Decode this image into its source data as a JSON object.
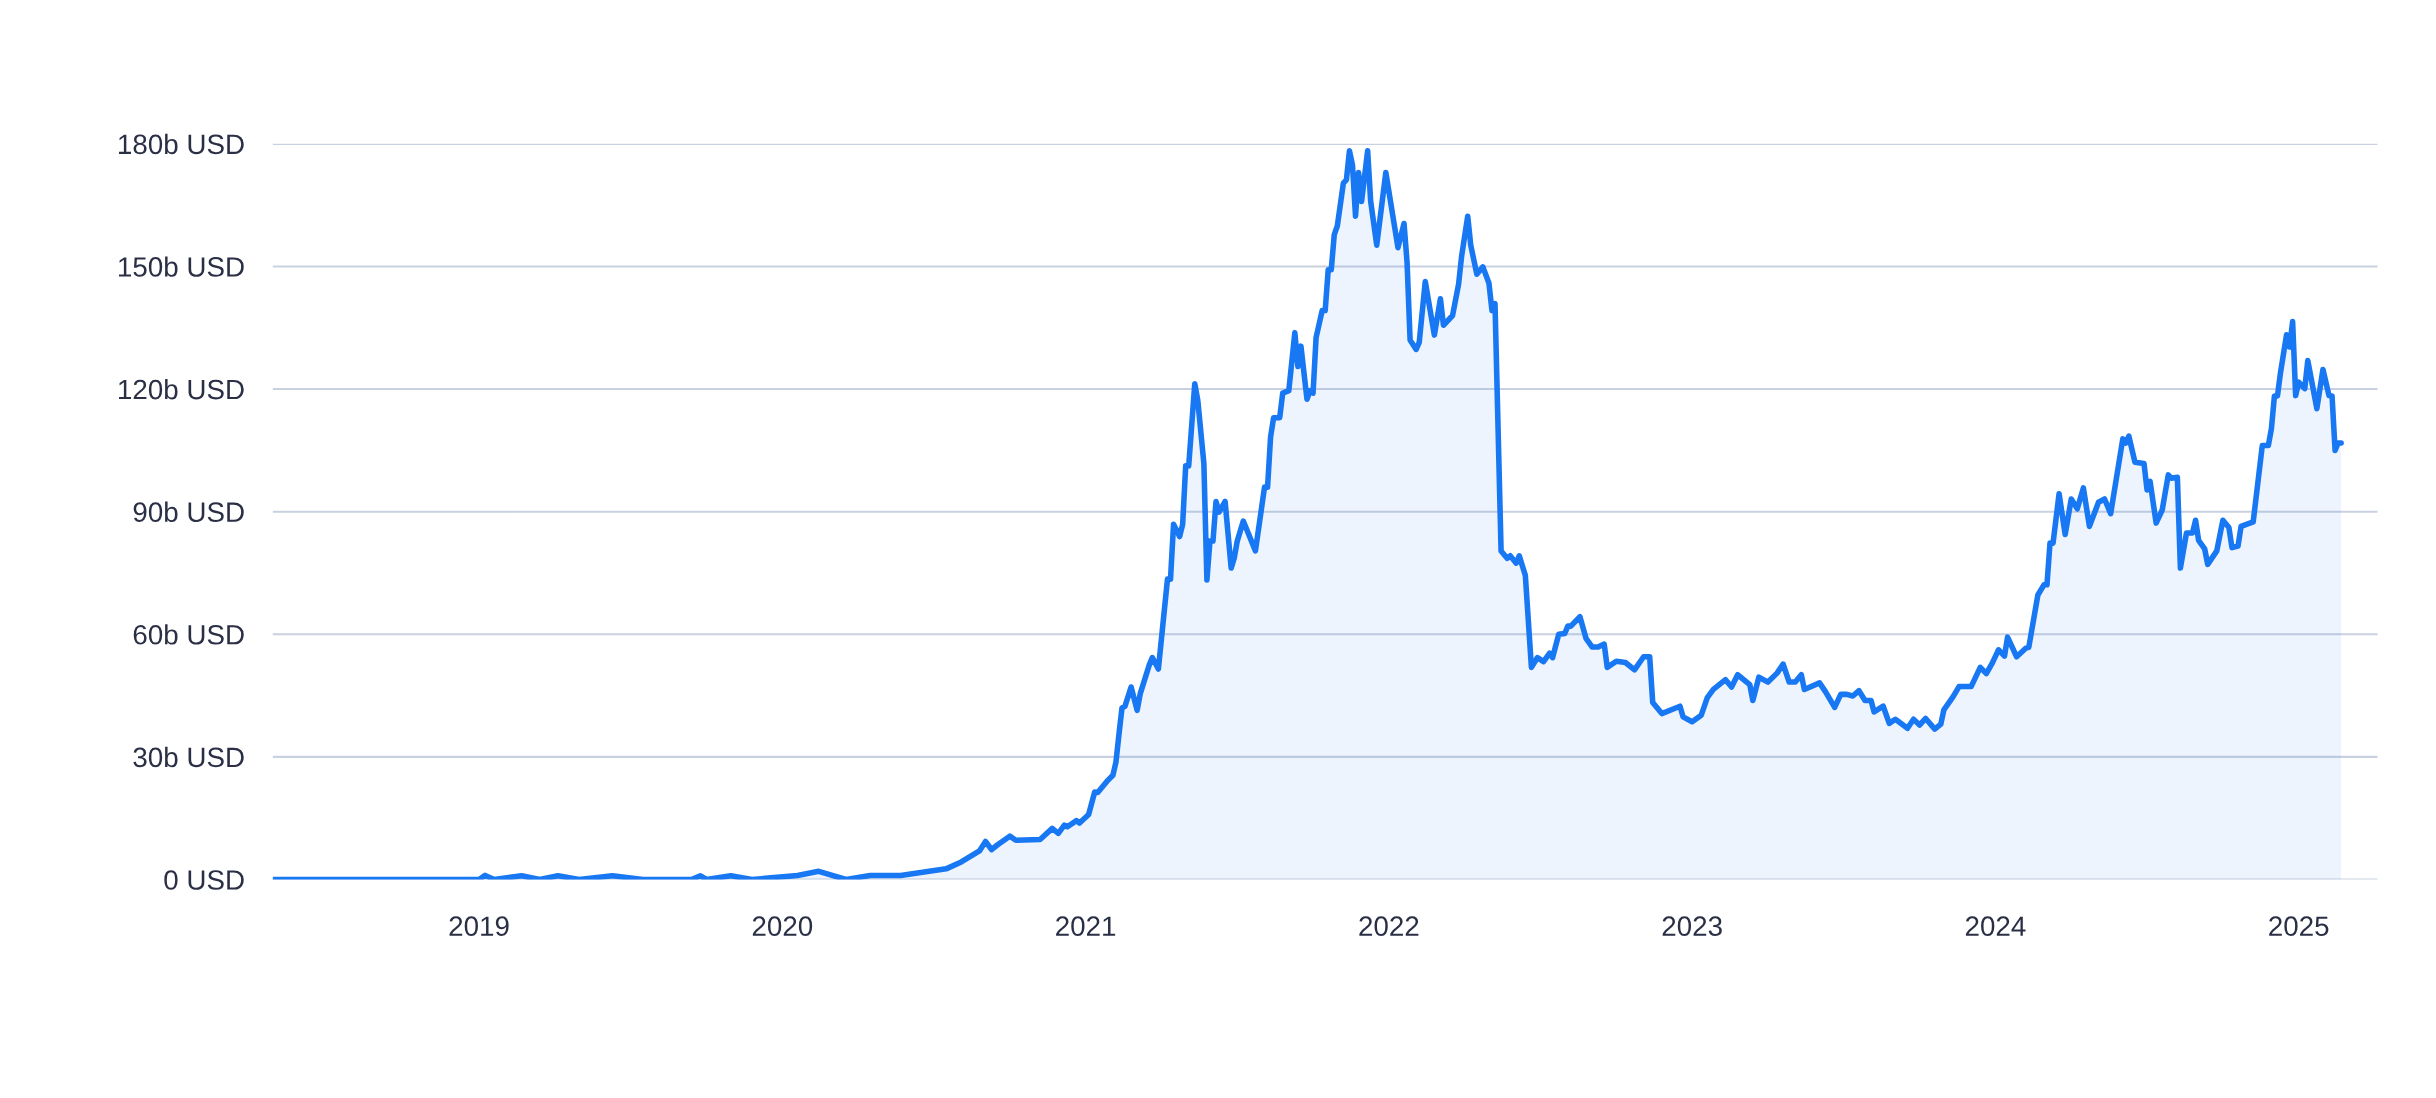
{
  "chart_data": {
    "type": "area",
    "x": [
      2018.32,
      2019.0,
      2019.02,
      2019.05,
      2019.14,
      2019.2,
      2019.26,
      2019.33,
      2019.44,
      2019.54,
      2019.7,
      2019.73,
      2019.75,
      2019.83,
      2019.9,
      2020.05,
      2020.12,
      2020.21,
      2020.29,
      2020.39,
      2020.54,
      2020.59,
      2020.65,
      2020.67,
      2020.69,
      2020.71,
      2020.75,
      2020.77,
      2020.85,
      2020.89,
      2020.91,
      2020.93,
      2020.94,
      2020.97,
      2020.98,
      2021.01,
      2021.03,
      2021.04,
      2021.07,
      2021.09,
      2021.1,
      2021.11,
      2021.12,
      2021.13,
      2021.15,
      2021.17,
      2021.18,
      2021.21,
      2021.22,
      2021.24,
      2021.27,
      2021.28,
      2021.29,
      2021.31,
      2021.32,
      2021.33,
      2021.34,
      2021.36,
      2021.37,
      2021.39,
      2021.4,
      2021.41,
      2021.42,
      2021.43,
      2021.44,
      2021.46,
      2021.48,
      2021.49,
      2021.5,
      2021.52,
      2021.56,
      2021.59,
      2021.6,
      2021.61,
      2021.62,
      2021.64,
      2021.65,
      2021.67,
      2021.69,
      2021.7,
      2021.71,
      2021.73,
      2021.74,
      2021.75,
      2021.76,
      2021.78,
      2021.79,
      2021.8,
      2021.81,
      2021.82,
      2021.83,
      2021.85,
      2021.86,
      2021.87,
      2021.88,
      2021.89,
      2021.9,
      2021.91,
      2021.93,
      2021.94,
      2021.96,
      2021.99,
      2022.03,
      2022.05,
      2022.06,
      2022.07,
      2022.09,
      2022.1,
      2022.12,
      2022.15,
      2022.17,
      2022.18,
      2022.21,
      2022.23,
      2022.24,
      2022.26,
      2022.27,
      2022.29,
      2022.31,
      2022.33,
      2022.34,
      2022.35,
      2022.37,
      2022.39,
      2022.4,
      2022.42,
      2022.43,
      2022.45,
      2022.47,
      2022.49,
      2022.51,
      2022.53,
      2022.54,
      2022.56,
      2022.58,
      2022.59,
      2022.6,
      2022.63,
      2022.65,
      2022.67,
      2022.69,
      2022.71,
      2022.72,
      2022.75,
      2022.78,
      2022.81,
      2022.84,
      2022.86,
      2022.87,
      2022.9,
      2022.96,
      2022.97,
      2023.0,
      2023.03,
      2023.05,
      2023.07,
      2023.11,
      2023.13,
      2023.15,
      2023.19,
      2023.2,
      2023.22,
      2023.25,
      2023.28,
      2023.3,
      2023.32,
      2023.34,
      2023.36,
      2023.37,
      2023.42,
      2023.44,
      2023.47,
      2023.49,
      2023.51,
      2023.53,
      2023.55,
      2023.57,
      2023.59,
      2023.6,
      2023.63,
      2023.65,
      2023.67,
      2023.71,
      2023.73,
      2023.75,
      2023.77,
      2023.8,
      2023.82,
      2023.83,
      2023.86,
      2023.88,
      2023.92,
      2023.95,
      2023.97,
      2023.99,
      2024.01,
      2024.03,
      2024.04,
      2024.07,
      2024.1,
      2024.11,
      2024.14,
      2024.16,
      2024.17,
      2024.18,
      2024.19,
      2024.21,
      2024.23,
      2024.25,
      2024.27,
      2024.29,
      2024.31,
      2024.34,
      2024.36,
      2024.38,
      2024.42,
      2024.43,
      2024.44,
      2024.46,
      2024.49,
      2024.5,
      2024.51,
      2024.53,
      2024.55,
      2024.57,
      2024.58,
      2024.6,
      2024.61,
      2024.63,
      2024.65,
      2024.66,
      2024.67,
      2024.69,
      2024.7,
      2024.73,
      2024.75,
      2024.77,
      2024.78,
      2024.8,
      2024.81,
      2024.85,
      2024.88,
      2024.9,
      2024.91,
      2024.92,
      2024.93,
      2024.94,
      2024.96,
      2024.97,
      2024.98,
      2024.99,
      2025.0,
      2025.02,
      2025.03,
      2025.06,
      2025.08,
      2025.1,
      2025.11,
      2025.12,
      2025.13,
      2025.14
    ],
    "series": [
      {
        "color": "#1877f2",
        "values": [
          0,
          0,
          1.0,
          0,
          0.9,
          0,
          0.9,
          0,
          0.9,
          0,
          0,
          0.9,
          0,
          0.9,
          0,
          1.0,
          2.0,
          0,
          1.0,
          1.0,
          2.6,
          4.3,
          7.0,
          9.3,
          7.3,
          8.5,
          10.6,
          9.6,
          9.8,
          12.5,
          11.3,
          13.3,
          12.9,
          14.4,
          13.8,
          15.9,
          21.4,
          21.3,
          24.0,
          25.5,
          28.7,
          35.5,
          42.0,
          42.4,
          47.1,
          41.4,
          45.4,
          52.5,
          54.3,
          51.5,
          73.5,
          73.5,
          86.9,
          83.9,
          86.9,
          101.2,
          101.2,
          121.3,
          117.2,
          101.8,
          73.3,
          82.8,
          82.8,
          92.5,
          89.9,
          92.5,
          76.2,
          78.6,
          82.8,
          87.7,
          80.4,
          96.0,
          96.0,
          108.3,
          113.0,
          113.0,
          119.0,
          119.6,
          133.8,
          125.5,
          130.5,
          117.5,
          119.6,
          119.0,
          132.6,
          139.2,
          139.2,
          149.2,
          149.2,
          157.8,
          159.9,
          170.4,
          171.2,
          178.3,
          174.8,
          162.3,
          173.0,
          165.9,
          178.3,
          165.9,
          155.2,
          173.0,
          154.6,
          160.5,
          151.0,
          132.0,
          129.7,
          131.4,
          146.3,
          133.2,
          142.1,
          135.6,
          138.0,
          145.7,
          152.6,
          162.3,
          155.2,
          148.1,
          149.9,
          145.9,
          139.2,
          140.9,
          80.4,
          78.6,
          79.2,
          77.4,
          79.2,
          74.4,
          51.9,
          54.3,
          53.3,
          55.4,
          54.3,
          60.0,
          60.2,
          62.0,
          62.0,
          64.3,
          59.0,
          56.9,
          56.9,
          57.6,
          51.9,
          53.4,
          53.1,
          51.3,
          54.5,
          54.5,
          43.3,
          40.6,
          42.4,
          39.8,
          38.6,
          40.2,
          44.5,
          46.5,
          48.9,
          47.1,
          50.1,
          47.7,
          43.8,
          49.5,
          48.3,
          50.5,
          52.7,
          48.3,
          48.3,
          50.1,
          46.5,
          48.1,
          45.9,
          42.1,
          45.3,
          45.3,
          44.9,
          46.2,
          43.8,
          43.8,
          41.0,
          42.4,
          38.2,
          39.2,
          37.0,
          39.2,
          37.8,
          39.4,
          36.8,
          38.0,
          41.5,
          44.7,
          47.2,
          47.2,
          51.9,
          50.4,
          53.0,
          56.2,
          54.7,
          59.3,
          54.5,
          56.6,
          56.8,
          69.6,
          72.1,
          72.1,
          82.3,
          82.3,
          94.4,
          84.4,
          93.1,
          90.7,
          95.8,
          86.4,
          92.3,
          93.1,
          89.5,
          107.8,
          106.8,
          108.5,
          102.1,
          101.8,
          95.3,
          97.4,
          87.2,
          90.4,
          99.0,
          98.2,
          98.4,
          76.2,
          84.8,
          84.8,
          87.9,
          83.0,
          80.9,
          77.1,
          80.4,
          87.9,
          86.1,
          81.2,
          81.6,
          86.4,
          87.5,
          106.2,
          106.2,
          110.3,
          118.3,
          118.3,
          124.0,
          133.3,
          130.3,
          136.5,
          118.4,
          121.7,
          120.1,
          127.0,
          115.2,
          124.8,
          118.4,
          118.3,
          105.0,
          106.8,
          106.8
        ]
      }
    ],
    "xlim": [
      2018.32,
      2025.26
    ],
    "xticks": [
      2019,
      2020,
      2021,
      2022,
      2023,
      2024,
      2025
    ],
    "ylim": [
      0,
      180
    ],
    "yticks": [
      {
        "value": 0,
        "label": "0 USD"
      },
      {
        "value": 30,
        "label": "30b USD"
      },
      {
        "value": 60,
        "label": "60b USD"
      },
      {
        "value": 90,
        "label": "90b USD"
      },
      {
        "value": 120,
        "label": "120b USD"
      },
      {
        "value": 150,
        "label": "150b USD"
      },
      {
        "value": 180,
        "label": "180b USD"
      }
    ],
    "grid": "y",
    "marker": "none",
    "line_style": "solid"
  }
}
